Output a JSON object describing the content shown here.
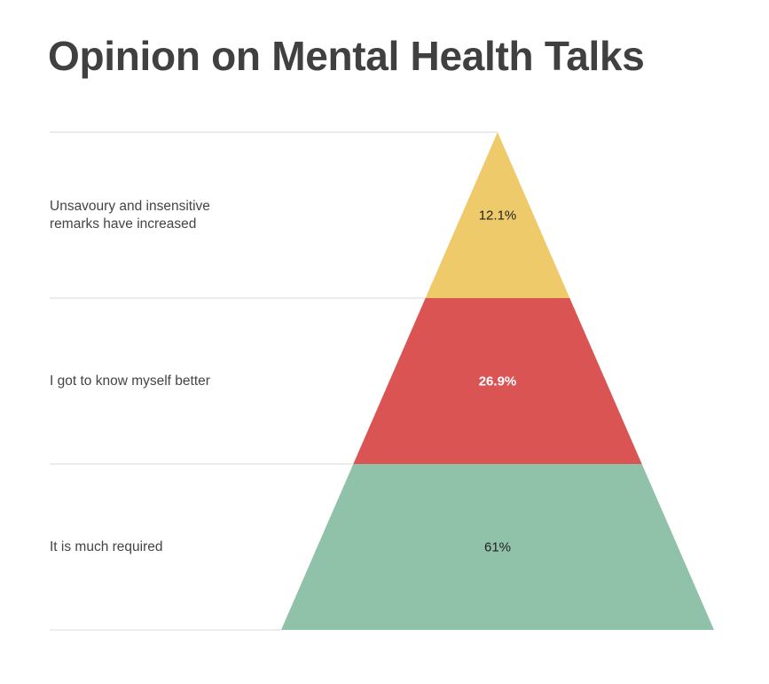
{
  "chart_data": {
    "type": "pyramid",
    "title": "Opinion on Mental Health Talks",
    "categories": [
      "Unsavoury and insensitive remarks have increased",
      "I got to know myself better",
      "It is much required"
    ],
    "values": [
      12.1,
      26.9,
      61
    ],
    "value_labels": [
      "12.1%",
      "26.9%",
      "61%"
    ],
    "colors": [
      "#EECA6B",
      "#DB5454",
      "#8FC2A8"
    ],
    "label_colors": [
      "#222222",
      "#ffffff",
      "#222222"
    ],
    "grid": true,
    "legend": "none"
  }
}
